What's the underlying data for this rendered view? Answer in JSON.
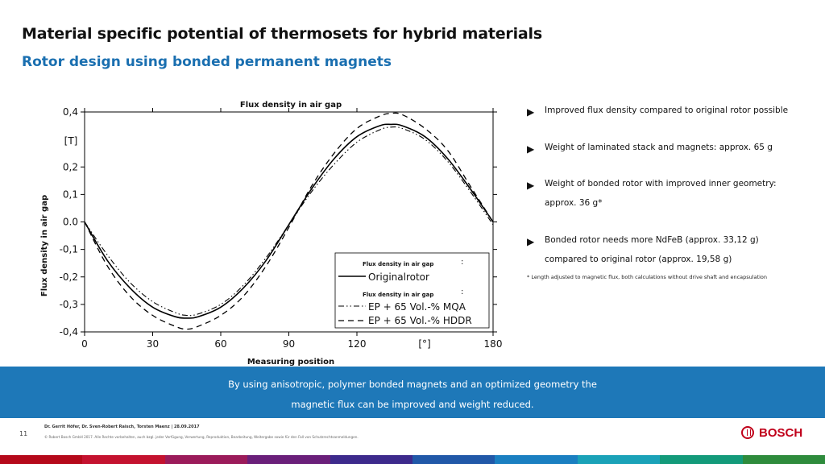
{
  "header": {
    "title": "Material specific potential of thermosets for hybrid materials",
    "subtitle": "Rotor design using bonded permanent magnets"
  },
  "bullets": [
    {
      "text": "Improved flux density compared to original rotor possible"
    },
    {
      "text": "Weight of laminated stack and magnets: approx. 65 g"
    },
    {
      "text": "Weight of bonded rotor with improved inner geometry:",
      "text2": "approx. 36 g*"
    },
    {
      "text": "Bonded rotor needs more NdFeB (approx. 33,12 g)",
      "text2": "compared to original rotor (approx. 19,58 g)"
    }
  ],
  "footnote": "* Length adjusted to magnetic flux, both calculations without drive shaft and encapsulation",
  "banner": {
    "line1": "By using anisotropic, polymer bonded magnets and an optimized geometry the",
    "line2": "magnetic flux can be improved and weight reduced."
  },
  "footer": {
    "page_number": "11",
    "authors": "Dr. Gerrit Höfer, Dr. Sven-Robert Raisch, Torsten Maenz | 28.09.2017",
    "copyright": "© Robert Bosch GmbH 2017. Alle Rechte vorbehalten, auch bzgl. jeder Verfügung, Verwertung, Reproduktion, Bearbeitung, Weitergabe sowie für den Fall von Schutzrechtsanmeldungen.",
    "logo_text": "BOSCH"
  },
  "brand_strip_colors": [
    "#b5091a",
    "#c4122f",
    "#9b1b5a",
    "#6a1f7a",
    "#3d2a8c",
    "#2158a8",
    "#1a7fc1",
    "#1aa2b8",
    "#139a7a",
    "#2e8b3c"
  ],
  "chart_data": {
    "type": "line",
    "title": "Flux density in air gap",
    "xlabel": "Measuring position",
    "ylabel": "Flux density in air gap",
    "x_unit": "[°]",
    "y_unit": "[T]",
    "xlim": [
      0,
      180
    ],
    "ylim": [
      -0.4,
      0.4
    ],
    "x_ticks": [
      "0",
      "30",
      "60",
      "90",
      "120",
      "180"
    ],
    "x_tick_values": [
      0,
      30,
      60,
      90,
      120,
      180
    ],
    "y_ticks": [
      "0,4",
      "0,2",
      "0,1",
      "0.0",
      "-0,1",
      "-0,2",
      "-0,3",
      "-0,4"
    ],
    "y_tick_values": [
      0.4,
      0.2,
      0.1,
      0.0,
      -0.1,
      -0.2,
      -0.3,
      -0.4
    ],
    "legend": {
      "position": "bottom-right",
      "header": "Flux density in air gap",
      "colon": ":"
    },
    "series": [
      {
        "name": "Originalrotor",
        "style": "solid",
        "x": [
          0,
          10,
          20,
          30,
          40,
          45,
          50,
          60,
          70,
          80,
          90,
          100,
          110,
          120,
          130,
          135,
          140,
          150,
          160,
          170,
          180
        ],
        "y": [
          0.0,
          -0.14,
          -0.24,
          -0.31,
          -0.345,
          -0.35,
          -0.345,
          -0.31,
          -0.24,
          -0.14,
          -0.01,
          0.12,
          0.23,
          0.31,
          0.35,
          0.355,
          0.35,
          0.31,
          0.23,
          0.12,
          0.0
        ]
      },
      {
        "name": "EP + 65 Vol.-% MQA",
        "style": "dash-dot-dot",
        "x": [
          0,
          10,
          20,
          30,
          40,
          45,
          50,
          60,
          70,
          80,
          90,
          100,
          110,
          120,
          130,
          135,
          140,
          150,
          160,
          170,
          180
        ],
        "y": [
          0.0,
          -0.12,
          -0.22,
          -0.29,
          -0.33,
          -0.34,
          -0.335,
          -0.3,
          -0.23,
          -0.13,
          -0.01,
          0.11,
          0.21,
          0.29,
          0.335,
          0.345,
          0.34,
          0.3,
          0.22,
          0.11,
          -0.01
        ]
      },
      {
        "name": "EP + 65 Vol.-% HDDR",
        "style": "dashed",
        "x": [
          0,
          10,
          20,
          30,
          40,
          45,
          50,
          60,
          70,
          80,
          90,
          100,
          110,
          120,
          130,
          135,
          140,
          150,
          160,
          170,
          180
        ],
        "y": [
          0.0,
          -0.16,
          -0.27,
          -0.34,
          -0.38,
          -0.39,
          -0.38,
          -0.34,
          -0.27,
          -0.16,
          -0.02,
          0.13,
          0.25,
          0.34,
          0.385,
          0.395,
          0.39,
          0.34,
          0.26,
          0.13,
          0.0
        ]
      }
    ]
  }
}
